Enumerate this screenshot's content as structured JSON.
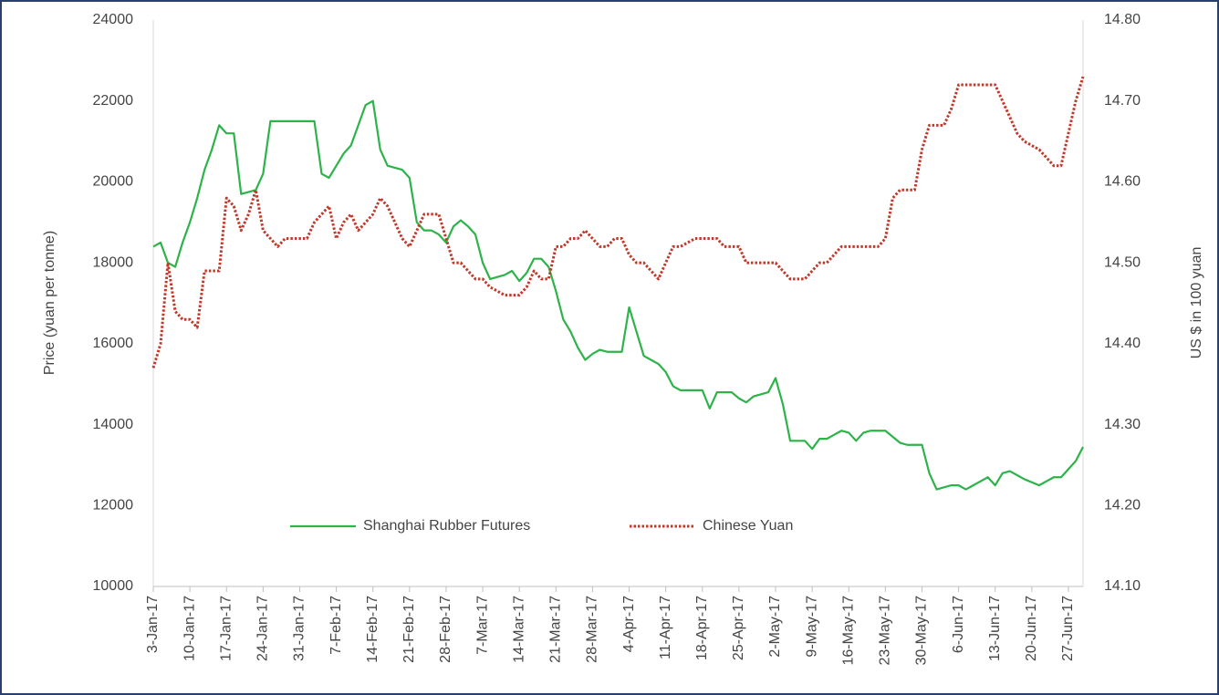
{
  "chart_data": {
    "type": "line",
    "ylabel": "Price (yuan per tonne)",
    "y2label": "US $ in 100 yuan",
    "legend": "bottom",
    "categories": [
      "3-Jan-17",
      null,
      null,
      null,
      null,
      "10-Jan-17",
      null,
      null,
      null,
      null,
      "17-Jan-17",
      null,
      null,
      null,
      null,
      "24-Jan-17",
      null,
      null,
      null,
      null,
      "31-Jan-17",
      null,
      null,
      null,
      null,
      "7-Feb-17",
      null,
      null,
      null,
      null,
      "14-Feb-17",
      null,
      null,
      null,
      null,
      "21-Feb-17",
      null,
      null,
      null,
      null,
      "28-Feb-17",
      null,
      null,
      null,
      null,
      "7-Mar-17",
      null,
      null,
      null,
      null,
      "14-Mar-17",
      null,
      null,
      null,
      null,
      "21-Mar-17",
      null,
      null,
      null,
      null,
      "28-Mar-17",
      null,
      null,
      null,
      null,
      "4-Apr-17",
      null,
      null,
      null,
      null,
      "11-Apr-17",
      null,
      null,
      null,
      null,
      "18-Apr-17",
      null,
      null,
      null,
      null,
      "25-Apr-17",
      null,
      null,
      null,
      null,
      "2-May-17",
      null,
      null,
      null,
      null,
      "9-May-17",
      null,
      null,
      null,
      null,
      "16-May-17",
      null,
      null,
      null,
      null,
      "23-May-17",
      null,
      null,
      null,
      null,
      "30-May-17",
      null,
      null,
      null,
      null,
      "6-Jun-17",
      null,
      null,
      null,
      null,
      "13-Jun-17",
      null,
      null,
      null,
      null,
      "20-Jun-17",
      null,
      null,
      null,
      null,
      "27-Jun-17",
      null,
      null
    ],
    "series": [
      {
        "name": "Shanghai Rubber Futures",
        "color": "#2db34a",
        "style": "solid",
        "values": [
          18400,
          18500,
          18000,
          17900,
          18500,
          19000,
          19600,
          20300,
          20800,
          21400,
          21200,
          21200,
          19700,
          19750,
          19800,
          20200,
          21500,
          21500,
          21500,
          21500,
          21500,
          21500,
          21500,
          20200,
          20100,
          20400,
          20700,
          20900,
          21400,
          21900,
          22000,
          20800,
          20400,
          20350,
          20300,
          20100,
          19000,
          18800,
          18800,
          18700,
          18500,
          18900,
          19050,
          18900,
          18700,
          18000,
          17600,
          17650,
          17700,
          17800,
          17550,
          17750,
          18100,
          18100,
          17900,
          17300,
          16600,
          16300,
          15900,
          15600,
          15750,
          15850,
          15800,
          15800,
          15800,
          16900,
          16300,
          15700,
          15600,
          15500,
          15300,
          14950,
          14850,
          14850,
          14850,
          14850,
          14400,
          14800,
          14800,
          14800,
          14650,
          14550,
          14700,
          14750,
          14800,
          15150,
          14500,
          13600,
          13600,
          13600,
          13400,
          13650,
          13650,
          13750,
          13850,
          13800,
          13600,
          13800,
          13850,
          13850,
          13850,
          13700,
          13550,
          13500,
          13500,
          13500,
          12800,
          12400,
          12450,
          12500,
          12500,
          12400,
          12500,
          12600,
          12700,
          12500,
          12800,
          12850,
          12750,
          12650,
          12575,
          12500,
          12600,
          12700,
          12700,
          12900,
          13100,
          13450
        ]
      },
      {
        "name": "Chinese Yuan",
        "color": "#c0392b",
        "style": "dotted",
        "axis": "y2",
        "values": [
          14.37,
          14.4,
          14.5,
          14.44,
          14.43,
          14.43,
          14.42,
          14.49,
          14.49,
          14.49,
          14.58,
          14.57,
          14.54,
          14.56,
          14.59,
          14.54,
          14.53,
          14.52,
          14.53,
          14.53,
          14.53,
          14.53,
          14.55,
          14.56,
          14.57,
          14.53,
          14.55,
          14.56,
          14.54,
          14.55,
          14.56,
          14.58,
          14.57,
          14.55,
          14.53,
          14.52,
          14.54,
          14.56,
          14.56,
          14.56,
          14.53,
          14.5,
          14.5,
          14.49,
          14.48,
          14.48,
          14.47,
          14.465,
          14.46,
          14.46,
          14.46,
          14.47,
          14.49,
          14.48,
          14.48,
          14.52,
          14.52,
          14.53,
          14.53,
          14.54,
          14.53,
          14.52,
          14.52,
          14.53,
          14.53,
          14.51,
          14.5,
          14.5,
          14.49,
          14.48,
          14.5,
          14.52,
          14.52,
          14.525,
          14.53,
          14.53,
          14.53,
          14.53,
          14.52,
          14.52,
          14.52,
          14.5,
          14.5,
          14.5,
          14.5,
          14.5,
          14.49,
          14.48,
          14.48,
          14.48,
          14.49,
          14.5,
          14.5,
          14.51,
          14.52,
          14.52,
          14.52,
          14.52,
          14.52,
          14.52,
          14.53,
          14.58,
          14.59,
          14.59,
          14.59,
          14.64,
          14.67,
          14.67,
          14.67,
          14.69,
          14.72,
          14.72,
          14.72,
          14.72,
          14.72,
          14.72,
          14.7,
          14.68,
          14.66,
          14.65,
          14.645,
          14.64,
          14.63,
          14.62,
          14.62,
          14.66,
          14.7,
          14.73
        ]
      }
    ],
    "ylim": [
      10000,
      24000
    ],
    "yticks": [
      10000,
      12000,
      14000,
      16000,
      18000,
      20000,
      22000,
      24000
    ],
    "y2lim": [
      14.1,
      14.8
    ],
    "y2ticks": [
      {
        "value": 14.1,
        "label": "14.10"
      },
      {
        "value": 14.2,
        "label": "14.20"
      },
      {
        "value": 14.3,
        "label": "14.30"
      },
      {
        "value": 14.4,
        "label": "14.40"
      },
      {
        "value": 14.5,
        "label": "14.50"
      },
      {
        "value": 14.6,
        "label": "14.60"
      },
      {
        "value": 14.7,
        "label": "14.70"
      },
      {
        "value": 14.8,
        "label": "14.80"
      }
    ],
    "grid": false
  }
}
